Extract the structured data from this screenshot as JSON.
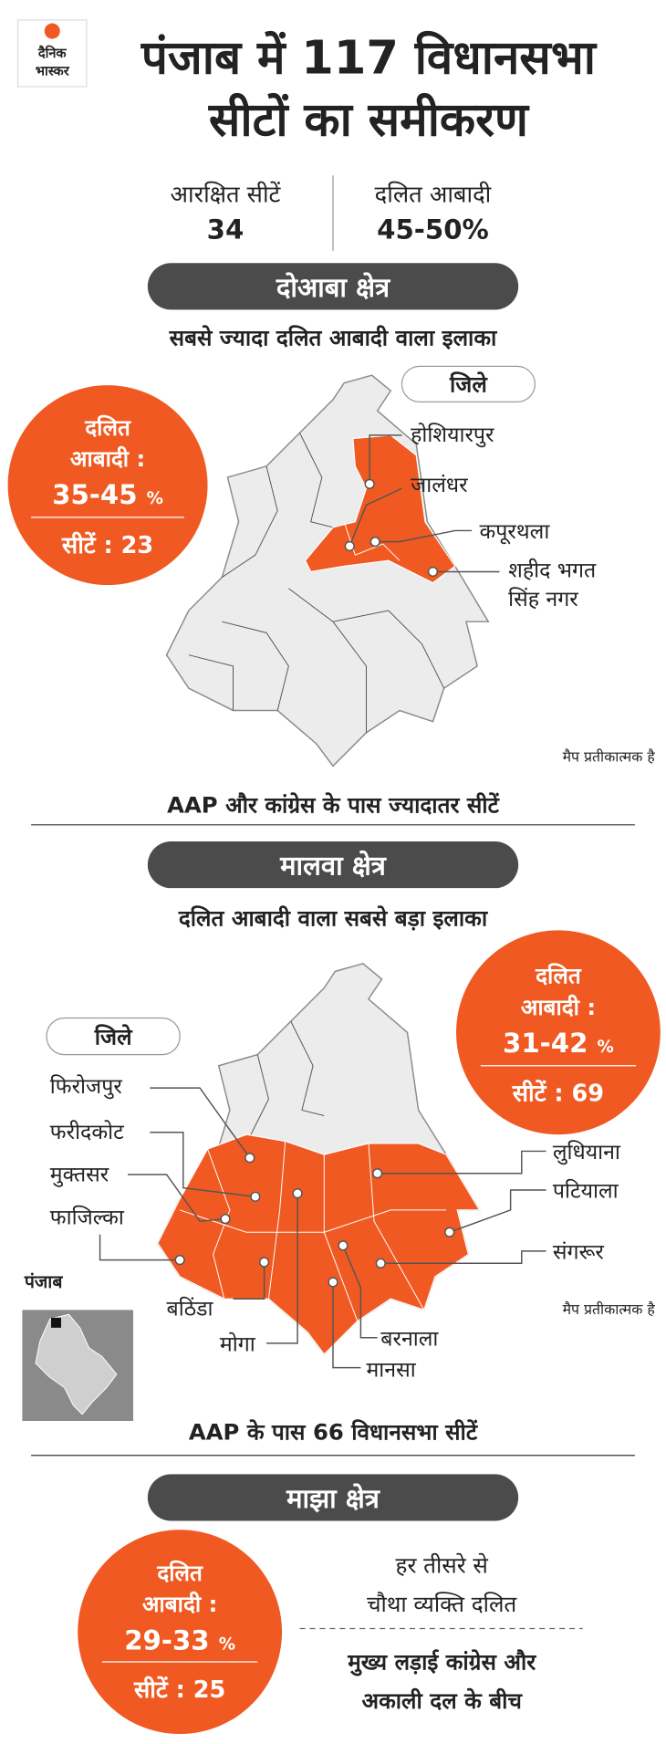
{
  "header": {
    "logo": [
      "दैनिक",
      "भास्कर"
    ],
    "title": [
      "पंजाब में 117 विधानसभा",
      "सीटों का समीकरण"
    ]
  },
  "stats": [
    {
      "label": "आरक्षित सीटें",
      "value": 34
    },
    {
      "label": "दलित आबादी",
      "value": "45-50%"
    }
  ],
  "inset_label": "पंजाब",
  "sections": [
    {
      "heading": "दोआबा क्षेत्र",
      "subtitle": "सबसे ज्यादा दलित आबादी वाला इलाका",
      "badge": {
        "label": [
          "दलित",
          "आबादी :"
        ],
        "range": "35-45",
        "unit": "%",
        "seats_label": "सीटें :",
        "seats": 23
      },
      "districts_label": "जिले",
      "districts": [
        "होशियारपुर",
        "जालंधर",
        "कपूरथला",
        [
          "शहीद भगत",
          "सिंह नगर"
        ]
      ],
      "note": "मैप प्रतीकात्मक है",
      "summary": "AAP और कांग्रेस के पास ज्यादातर सीटें"
    },
    {
      "heading": "मालवा क्षेत्र",
      "subtitle": "दलित आबादी वाला सबसे बड़ा इलाका",
      "badge": {
        "label": [
          "दलित",
          "आबादी :"
        ],
        "range": "31-42",
        "unit": "%",
        "seats_label": "सीटें :",
        "seats": 69
      },
      "districts_label": "जिले",
      "districts": [
        "फिरोजपुर",
        "फरीदकोट",
        "मुक्तसर",
        "फाजिल्का",
        "बठिंडा",
        "मोगा",
        "बरनाला",
        "मानसा",
        "लुधियाना",
        "पटियाला",
        "संगरूर"
      ],
      "note": "मैप प्रतीकात्मक है",
      "summary": "AAP के पास 66 विधानसभा सीटें"
    },
    {
      "heading": "माझा क्षेत्र",
      "badge": {
        "label": [
          "दलित",
          "आबादी :"
        ],
        "range": "29-33",
        "unit": "%",
        "seats_label": "सीटें :",
        "seats": 25
      },
      "facts": [
        [
          "हर तीसरे से",
          "चौथा व्यक्ति दलित"
        ],
        [
          "मुख्य लड़ाई कांग्रेस और",
          "अकाली दल के बीच"
        ]
      ]
    }
  ]
}
